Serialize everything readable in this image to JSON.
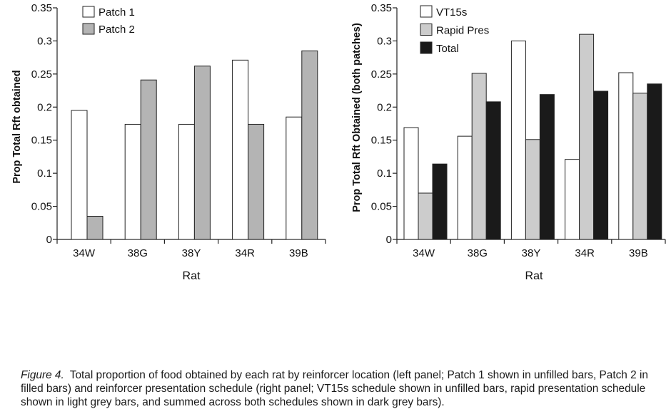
{
  "chart_data": [
    {
      "type": "bar",
      "panel": "left",
      "ylabel": "Prop Total Rft obtained",
      "xlabel": "Rat",
      "categories": [
        "34W",
        "38G",
        "38Y",
        "34R",
        "39B"
      ],
      "ylim": [
        0,
        0.35
      ],
      "yticks": [
        "0",
        "0.05",
        "0.1",
        "0.15",
        "0.2",
        "0.25",
        "0.3",
        "0.35"
      ],
      "legend_position": "top-left",
      "series": [
        {
          "name": "Patch 1",
          "color": "#ffffff",
          "values": [
            0.195,
            0.174,
            0.174,
            0.271,
            0.185
          ]
        },
        {
          "name": "Patch 2",
          "color": "#b4b4b4",
          "values": [
            0.035,
            0.241,
            0.262,
            0.174,
            0.285
          ]
        }
      ]
    },
    {
      "type": "bar",
      "panel": "right",
      "ylabel": "Prop Total Rft Obtained (both patches)",
      "xlabel": "Rat",
      "categories": [
        "34W",
        "38G",
        "38Y",
        "34R",
        "39B"
      ],
      "ylim": [
        0,
        0.35
      ],
      "yticks": [
        "0",
        "0.05",
        "0.1",
        "0.15",
        "0.2",
        "0.25",
        "0.3",
        "0.35"
      ],
      "legend_position": "top-left",
      "series": [
        {
          "name": "VT15s",
          "color": "#ffffff",
          "values": [
            0.169,
            0.156,
            0.3,
            0.121,
            0.252
          ]
        },
        {
          "name": "Rapid Pres",
          "color": "#cccccc",
          "values": [
            0.07,
            0.251,
            0.151,
            0.31,
            0.221
          ]
        },
        {
          "name": "Total",
          "color": "#1a1a1a",
          "values": [
            0.114,
            0.208,
            0.219,
            0.224,
            0.235
          ]
        }
      ]
    }
  ],
  "caption": {
    "label": "Figure 4.",
    "text": "Total proportion of food obtained by each rat by reinforcer location (left panel; Patch 1 shown in unfilled bars, Patch 2 in filled bars) and reinforcer presentation schedule (right panel; VT15s schedule shown in unfilled bars, rapid presentation schedule shown in light grey bars, and summed across both schedules shown in dark grey bars)."
  }
}
